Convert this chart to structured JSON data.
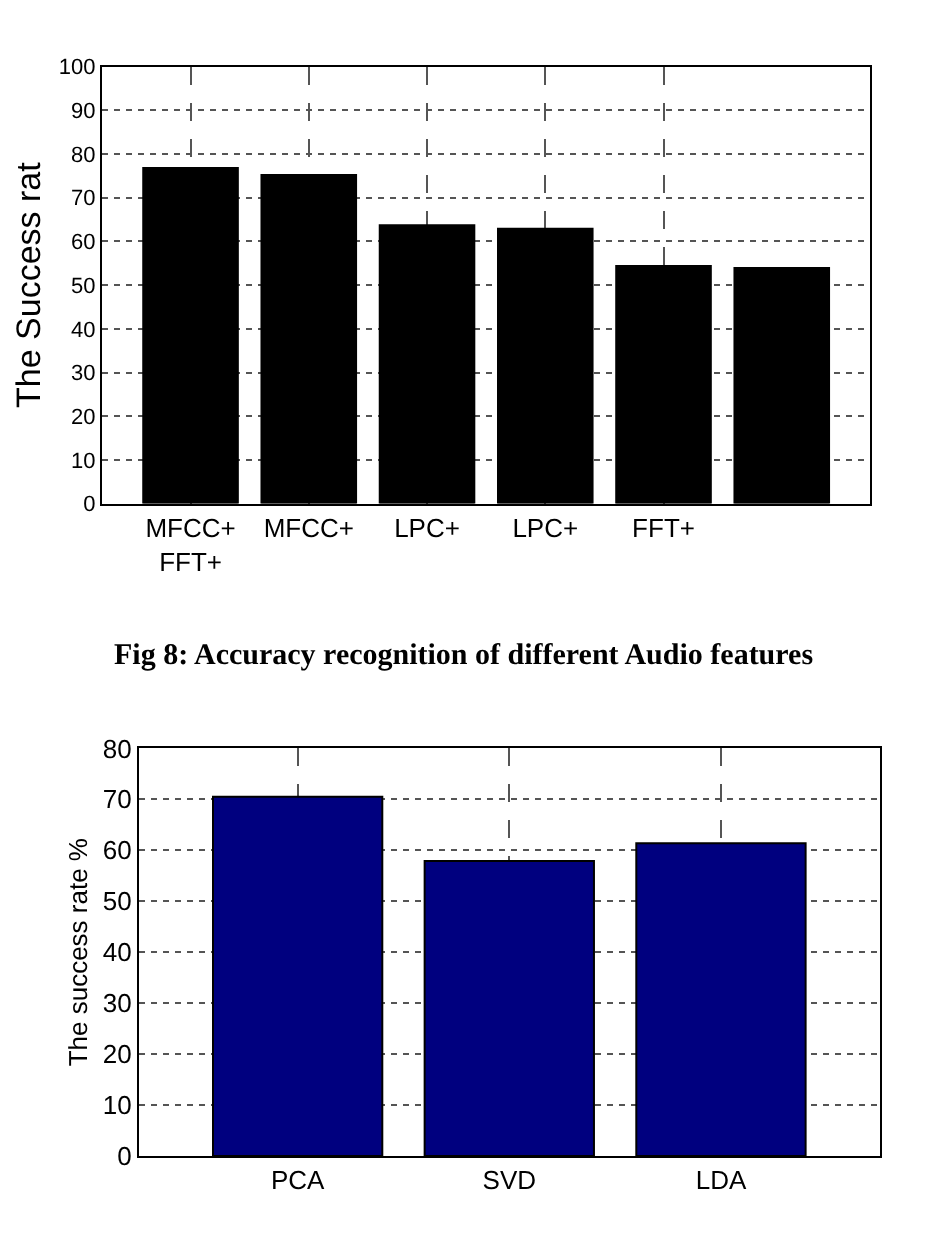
{
  "chart_data": [
    {
      "type": "bar",
      "ylabel": "The Success rat",
      "categories": [
        "MFCC+\nFFT+",
        "MFCC+",
        "LPC+",
        "LPC+",
        "FFT+",
        null
      ],
      "values": [
        76.8,
        75.2,
        63.7,
        62.9,
        54.4,
        53.9
      ],
      "color": "#000000",
      "ylim": [
        0,
        100
      ],
      "yticks": [
        0,
        10,
        20,
        30,
        40,
        50,
        60,
        70,
        80,
        90,
        100
      ],
      "grid": true,
      "annotations": [
        "Fig 8: Accuracy recognition of different Audio features"
      ]
    },
    {
      "type": "bar",
      "ylabel": "The success rate %",
      "categories": [
        "PCA",
        "SVD",
        "LDA"
      ],
      "values": [
        70.5,
        57.9,
        61.4
      ],
      "color": "#00007f",
      "ylim": [
        0,
        80
      ],
      "yticks": [
        0,
        10,
        20,
        30,
        40,
        50,
        60,
        70,
        80
      ],
      "grid": true
    }
  ]
}
